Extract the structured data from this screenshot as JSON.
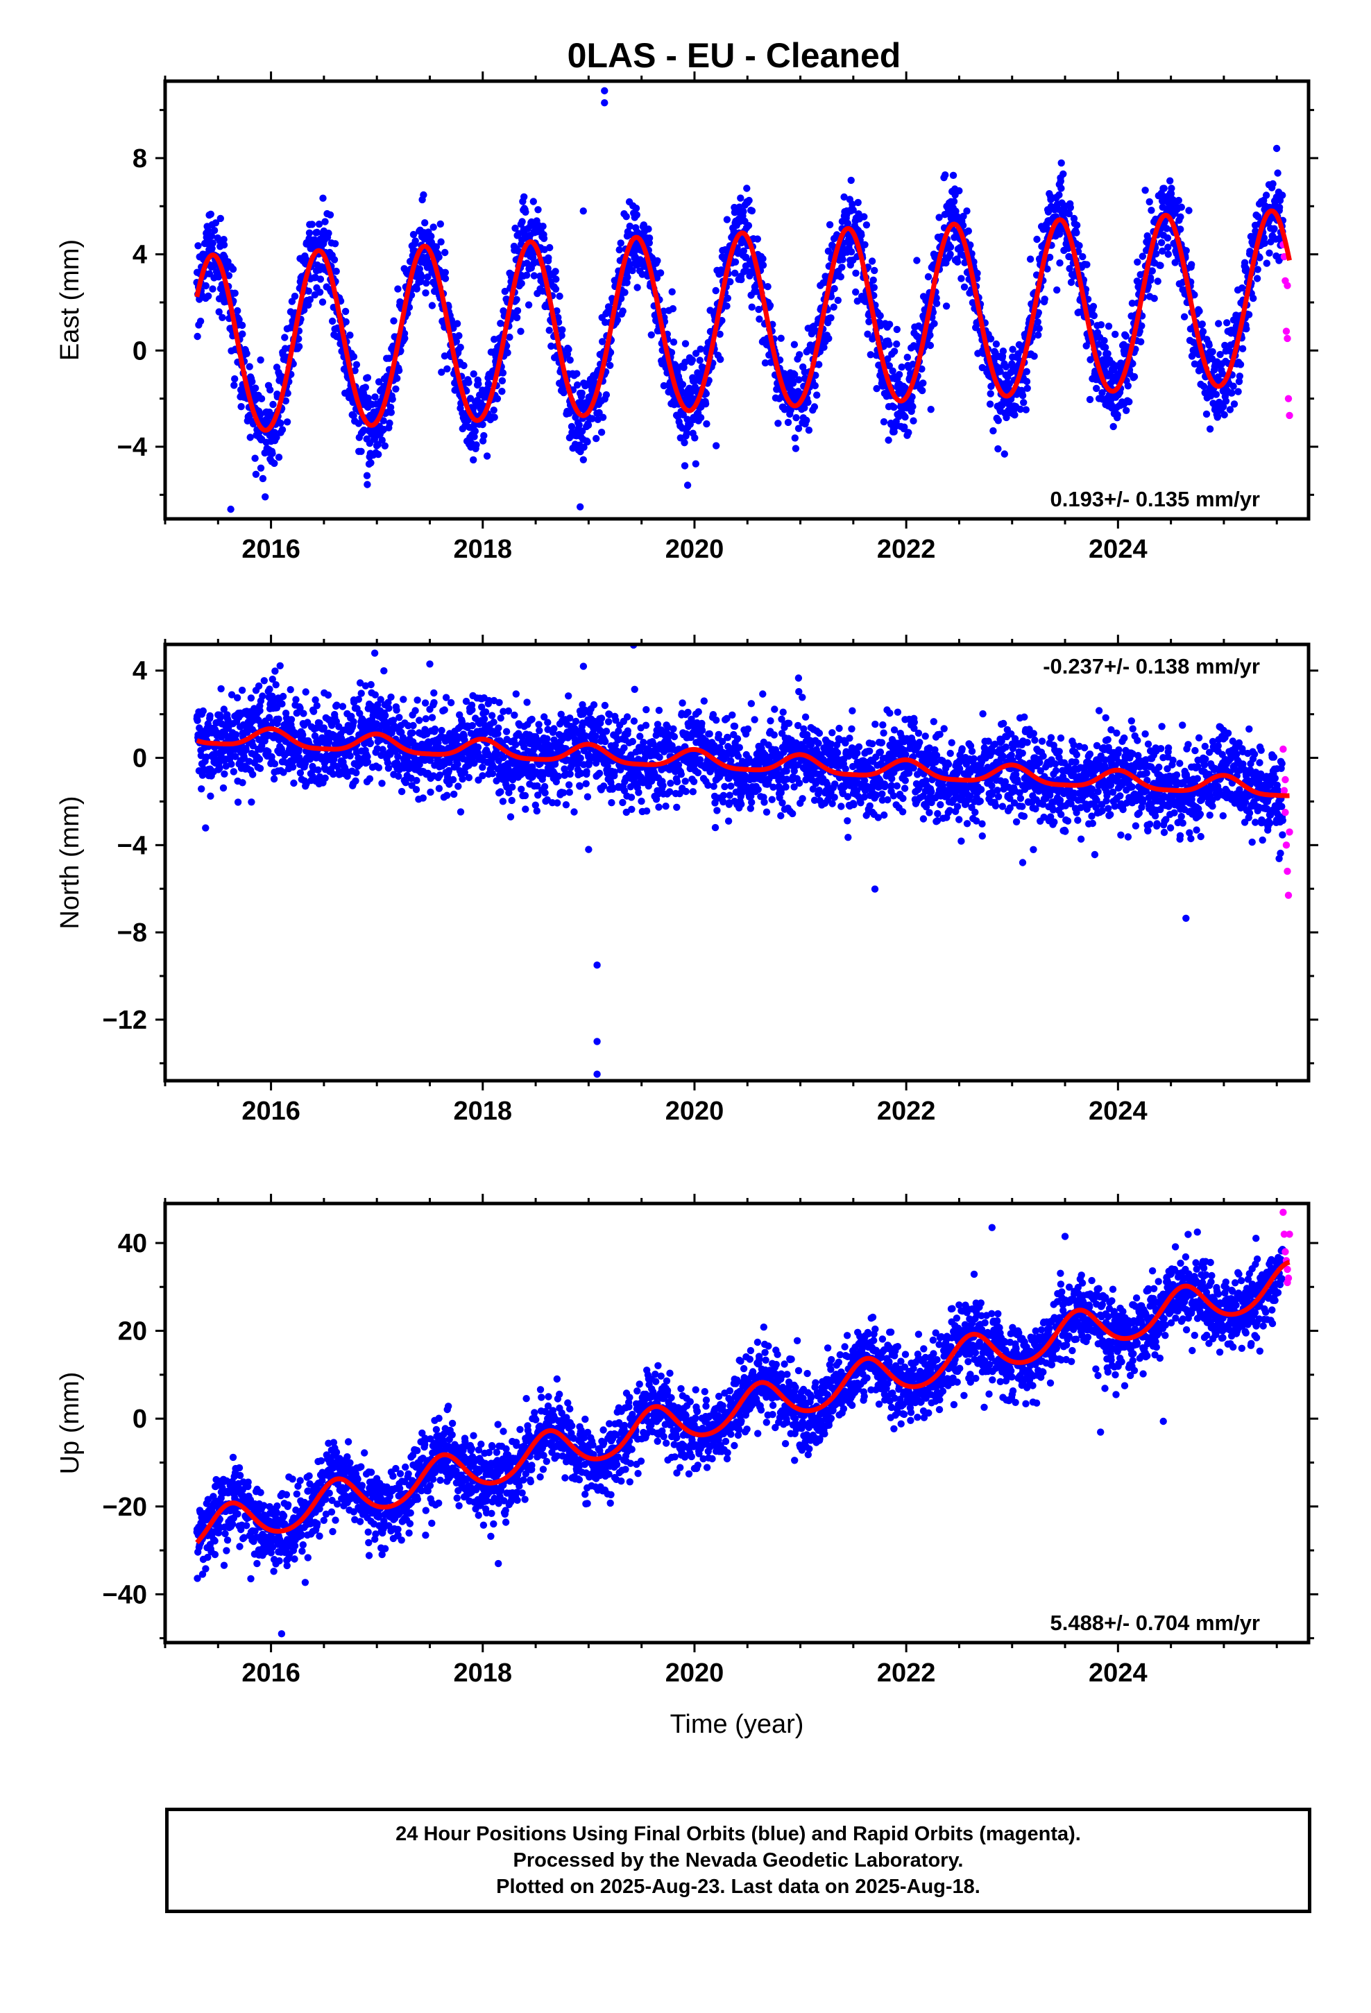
{
  "title": "0LAS  - EU - Cleaned",
  "xlabel": "Time (year)",
  "colors": {
    "final_orbits": "#0000ff",
    "rapid_orbits": "#ff00ff",
    "model": "#ff0000",
    "frame": "#000000"
  },
  "footer": {
    "line1": "24 Hour Positions Using Final Orbits (blue) and Rapid Orbits (magenta).",
    "line2": "Processed by the Nevada Geodetic Laboratory.",
    "line3": "Plotted on 2025-Aug-23. Last data on 2025-Aug-18."
  },
  "chart_data": [
    {
      "type": "scatter",
      "ylabel": "East (mm)",
      "xlim": [
        2015.0,
        2025.8
      ],
      "ylim": [
        -7,
        11.2
      ],
      "xticks": [
        2016,
        2018,
        2020,
        2022,
        2024
      ],
      "yticks": [
        -4,
        0,
        4,
        8
      ],
      "annotation": "0.193+/- 0.135 mm/yr",
      "annotation_position": "bottom-right",
      "data_range": [
        2015.3,
        2025.62
      ],
      "rapid_start": 2025.56,
      "model": {
        "offset": 0.1,
        "rate_mm_per_yr": 0.193,
        "annual_amp_start": 3.7,
        "annual_amp_end": 3.6,
        "annual_phase_peak": 0.45,
        "semiannual_amp": 0.15
      },
      "scatter_sd": 0.9,
      "outliers": [
        {
          "x": 2019.15,
          "y": 10.8
        },
        {
          "x": 2019.15,
          "y": 10.3
        },
        {
          "x": 2018.95,
          "y": 5.8
        },
        {
          "x": 2015.62,
          "y": -6.6
        },
        {
          "x": 2018.92,
          "y": -6.5
        }
      ],
      "rapid_points": [
        {
          "x": 2025.56,
          "y": 4.4
        },
        {
          "x": 2025.57,
          "y": 3.9
        },
        {
          "x": 2025.58,
          "y": 2.9
        },
        {
          "x": 2025.59,
          "y": 0.8
        },
        {
          "x": 2025.6,
          "y": 0.5
        },
        {
          "x": 2025.61,
          "y": -2.0
        },
        {
          "x": 2025.62,
          "y": -2.7
        },
        {
          "x": 2025.6,
          "y": 2.7
        }
      ]
    },
    {
      "type": "scatter",
      "ylabel": "North (mm)",
      "xlim": [
        2015.0,
        2025.8
      ],
      "ylim": [
        -14.8,
        5.2
      ],
      "xticks": [
        2016,
        2018,
        2020,
        2022,
        2024
      ],
      "yticks": [
        -12,
        -8,
        -4,
        0,
        4
      ],
      "annotation": "-0.237+/- 0.138 mm/yr",
      "annotation_position": "top-right",
      "data_range": [
        2015.3,
        2025.62
      ],
      "rapid_start": 2025.56,
      "model": {
        "offset": 1.0,
        "rate_mm_per_yr": -0.237,
        "annual_amp_start": 0.4,
        "annual_amp_end": 0.4,
        "annual_phase_peak": 0.0,
        "semiannual_amp": 0.1
      },
      "scatter_sd": 1.0,
      "outliers": [
        {
          "x": 2019.08,
          "y": -9.5
        },
        {
          "x": 2019.08,
          "y": -13.0
        },
        {
          "x": 2019.08,
          "y": -14.5
        },
        {
          "x": 2016.98,
          "y": 4.8
        },
        {
          "x": 2019.0,
          "y": -4.2
        },
        {
          "x": 2023.1,
          "y": -4.8
        },
        {
          "x": 2017.5,
          "y": 4.3
        }
      ],
      "rapid_points": [
        {
          "x": 2025.56,
          "y": 0.4
        },
        {
          "x": 2025.57,
          "y": -1.5
        },
        {
          "x": 2025.58,
          "y": -2.5
        },
        {
          "x": 2025.59,
          "y": -4.0
        },
        {
          "x": 2025.6,
          "y": -5.2
        },
        {
          "x": 2025.61,
          "y": -6.3
        },
        {
          "x": 2025.62,
          "y": -3.4
        },
        {
          "x": 2025.58,
          "y": -1.0
        }
      ]
    },
    {
      "type": "scatter",
      "ylabel": "Up (mm)",
      "xlim": [
        2015.0,
        2025.8
      ],
      "ylim": [
        -51,
        49
      ],
      "xticks": [
        2016,
        2018,
        2020,
        2022,
        2024
      ],
      "yticks": [
        -40,
        -20,
        0,
        20,
        40
      ],
      "annotation": "5.488+/- 0.704 mm/yr",
      "annotation_position": "bottom-right",
      "data_range": [
        2015.3,
        2025.62
      ],
      "rapid_start": 2025.56,
      "model": {
        "offset": -26.0,
        "rate_mm_per_yr": 5.488,
        "annual_amp_start": 4.5,
        "annual_amp_end": 4.5,
        "annual_phase_peak": 0.62,
        "semiannual_amp": 0.5
      },
      "scatter_sd": 4.2,
      "outliers": [
        {
          "x": 2016.1,
          "y": -49
        },
        {
          "x": 2023.5,
          "y": 41.5
        },
        {
          "x": 2024.75,
          "y": 42.5
        }
      ],
      "rapid_points": [
        {
          "x": 2025.56,
          "y": 47
        },
        {
          "x": 2025.57,
          "y": 42
        },
        {
          "x": 2025.58,
          "y": 38
        },
        {
          "x": 2025.59,
          "y": 36
        },
        {
          "x": 2025.6,
          "y": 34
        },
        {
          "x": 2025.61,
          "y": 32
        },
        {
          "x": 2025.62,
          "y": 42
        },
        {
          "x": 2025.6,
          "y": 31
        }
      ]
    }
  ]
}
